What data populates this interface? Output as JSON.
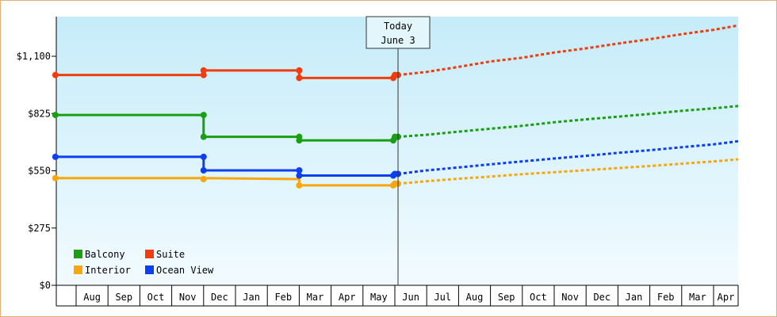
{
  "chart_data": {
    "type": "line",
    "title": "",
    "xlabel": "",
    "ylabel": "",
    "ylim": [
      0,
      1100
    ],
    "y_ticks": [
      {
        "value": 0,
        "label": "$0"
      },
      {
        "value": 275,
        "label": "$275"
      },
      {
        "value": 550,
        "label": "$550"
      },
      {
        "value": 825,
        "label": "$825"
      },
      {
        "value": 1100,
        "label": "$1,100"
      }
    ],
    "months": [
      "Aug",
      "Sep",
      "Oct",
      "Nov",
      "Dec",
      "Jan",
      "Feb",
      "Mar",
      "Apr",
      "May",
      "Jun",
      "Jul",
      "Aug",
      "Sep",
      "Oct",
      "Nov",
      "Dec",
      "Jan",
      "Feb",
      "Mar",
      "Apr"
    ],
    "today": {
      "line1": "Today",
      "line2": "June 3",
      "x": 10.1
    },
    "grid": false,
    "legend_position": "bottom-left",
    "series": [
      {
        "name": "Balcony",
        "color": "#1a9e12",
        "history": [
          [
            -0.65,
            818
          ],
          [
            4.0,
            818
          ],
          [
            4.0,
            818
          ],
          [
            4.0,
            713
          ],
          [
            7.0,
            713
          ],
          [
            7.0,
            696
          ],
          [
            10.0,
            696
          ],
          [
            10.1,
            713
          ]
        ],
        "markers": [
          [
            -0.65,
            818
          ],
          [
            4.0,
            818
          ],
          [
            4.0,
            713
          ],
          [
            7.0,
            713
          ],
          [
            7.0,
            696
          ],
          [
            9.95,
            696
          ],
          [
            10.0,
            713
          ],
          [
            10.1,
            713
          ]
        ],
        "forecast": [
          [
            10.1,
            713
          ],
          [
            11.0,
            723
          ],
          [
            12.0,
            738
          ],
          [
            13.0,
            752
          ],
          [
            14.0,
            766
          ],
          [
            15.0,
            783
          ],
          [
            16.0,
            797
          ],
          [
            17.0,
            810
          ],
          [
            18.0,
            823
          ],
          [
            19.0,
            838
          ],
          [
            20.0,
            850
          ],
          [
            20.8,
            861
          ]
        ]
      },
      {
        "name": "Suite",
        "color": "#f03c0e",
        "history": [
          [
            -0.65,
            1010
          ],
          [
            4.0,
            1010
          ],
          [
            4.0,
            1032
          ],
          [
            7.0,
            1032
          ],
          [
            7.0,
            996
          ],
          [
            10.0,
            996
          ],
          [
            10.1,
            1010
          ]
        ],
        "markers": [
          [
            -0.65,
            1010
          ],
          [
            4.0,
            1010
          ],
          [
            4.0,
            1032
          ],
          [
            7.0,
            1032
          ],
          [
            7.0,
            996
          ],
          [
            9.95,
            996
          ],
          [
            10.0,
            1010
          ],
          [
            10.1,
            1010
          ]
        ],
        "forecast": [
          [
            10.1,
            1010
          ],
          [
            11.0,
            1025
          ],
          [
            12.0,
            1049
          ],
          [
            13.0,
            1075
          ],
          [
            14.0,
            1093
          ],
          [
            15.0,
            1118
          ],
          [
            16.0,
            1138
          ],
          [
            17.0,
            1161
          ],
          [
            18.0,
            1182
          ],
          [
            19.0,
            1206
          ],
          [
            20.0,
            1227
          ],
          [
            20.8,
            1248
          ]
        ]
      },
      {
        "name": "Interior",
        "color": "#f7a70d",
        "history": [
          [
            -0.65,
            515
          ],
          [
            4.0,
            515
          ],
          [
            7.0,
            510
          ],
          [
            7.0,
            480
          ],
          [
            10.0,
            480
          ],
          [
            10.1,
            488
          ]
        ],
        "markers": [
          [
            -0.65,
            515
          ],
          [
            4.0,
            510
          ],
          [
            7.0,
            480
          ],
          [
            9.95,
            480
          ],
          [
            10.0,
            488
          ],
          [
            10.1,
            488
          ]
        ],
        "forecast": [
          [
            10.1,
            488
          ],
          [
            11.0,
            500
          ],
          [
            12.0,
            512
          ],
          [
            13.0,
            522
          ],
          [
            14.0,
            534
          ],
          [
            15.0,
            543
          ],
          [
            16.0,
            553
          ],
          [
            17.0,
            563
          ],
          [
            18.0,
            573
          ],
          [
            19.0,
            584
          ],
          [
            20.0,
            595
          ],
          [
            20.8,
            605
          ]
        ]
      },
      {
        "name": "Ocean View",
        "color": "#0d3ef0",
        "history": [
          [
            -0.65,
            617
          ],
          [
            4.0,
            617
          ],
          [
            4.0,
            552
          ],
          [
            7.0,
            552
          ],
          [
            7.0,
            527
          ],
          [
            10.0,
            527
          ],
          [
            10.1,
            535
          ]
        ],
        "markers": [
          [
            -0.65,
            617
          ],
          [
            4.0,
            617
          ],
          [
            4.0,
            552
          ],
          [
            7.0,
            552
          ],
          [
            7.0,
            527
          ],
          [
            9.95,
            527
          ],
          [
            10.0,
            535
          ],
          [
            10.1,
            535
          ]
        ],
        "forecast": [
          [
            10.1,
            535
          ],
          [
            11.0,
            552
          ],
          [
            12.0,
            566
          ],
          [
            13.0,
            581
          ],
          [
            14.0,
            595
          ],
          [
            15.0,
            609
          ],
          [
            16.0,
            622
          ],
          [
            17.0,
            636
          ],
          [
            18.0,
            649
          ],
          [
            19.0,
            663
          ],
          [
            20.0,
            677
          ],
          [
            20.8,
            692
          ]
        ]
      }
    ],
    "legend": [
      {
        "name": "Balcony",
        "color": "#1a9e12"
      },
      {
        "name": "Suite",
        "color": "#f03c0e"
      },
      {
        "name": "Interior",
        "color": "#f7a70d"
      },
      {
        "name": "Ocean View",
        "color": "#0d3ef0"
      }
    ]
  }
}
